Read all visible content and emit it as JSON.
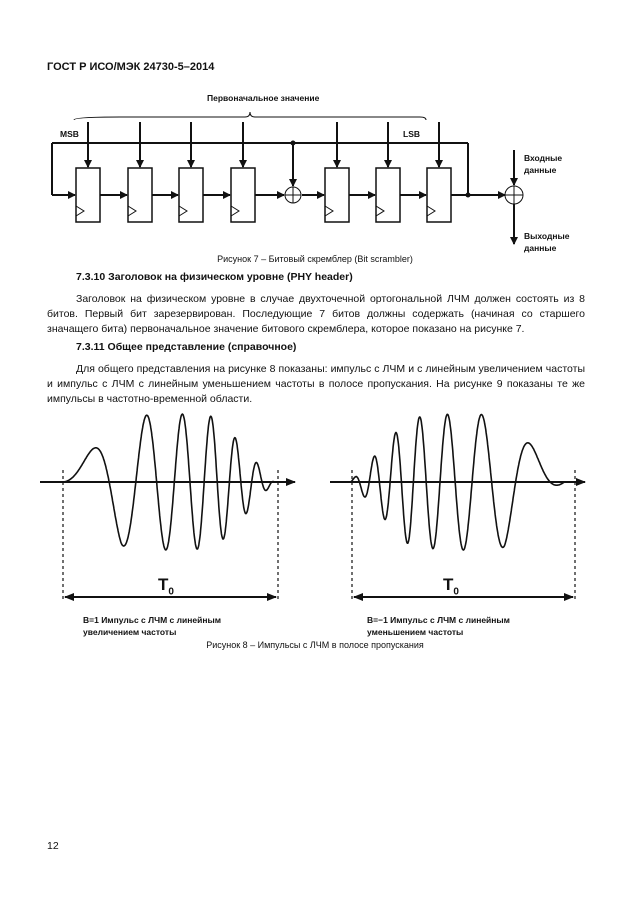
{
  "header": "ГОСТ Р ИСО/МЭК 24730-5–2014",
  "figure7": {
    "brace_label": "Первоначальное значение",
    "msb": "MSB",
    "lsb": "LSB",
    "input_label": [
      "Входные",
      "данные"
    ],
    "output_label": [
      "Выходные",
      "данные"
    ],
    "caption": "Рисунок 7 – Битовый скремблер (Bit scrambler)"
  },
  "section_7_3_10": {
    "heading": "7.3.10 Заголовок на физическом уровне (PHY header)",
    "text": "Заголовок на физическом уровне в случае двухточечной ортогональной ЛЧМ должен состоять из 8 битов. Первый бит зарезервирован. Последующие 7 битов должны содержать (начиная со старшего значащего бита) первоначальное значение битового скремблера, которое показано на рисунке 7."
  },
  "section_7_3_11": {
    "heading": "7.3.11 Общее представление (справочное)",
    "text": "Для общего представления на рисунке 8 показаны: импульс с ЛЧМ и с линейным увеличением частоты и импульс с ЛЧМ с линейным уменьшением частоты в полосе пропускания. На рисунке 9 показаны те же импульсы в частотно-временной области."
  },
  "figure8": {
    "period_label": "T",
    "period_sub": "0",
    "left_label": [
      "B=1 Импульс с ЛЧМ с линейным",
      "увеличением частоты"
    ],
    "right_label": [
      "B=−1 Импульс с ЛЧМ с линейным",
      "уменьшением частоты"
    ],
    "caption": "Рисунок 8 – Импульсы с ЛЧМ в полосе пропускания"
  },
  "page_number": "12"
}
